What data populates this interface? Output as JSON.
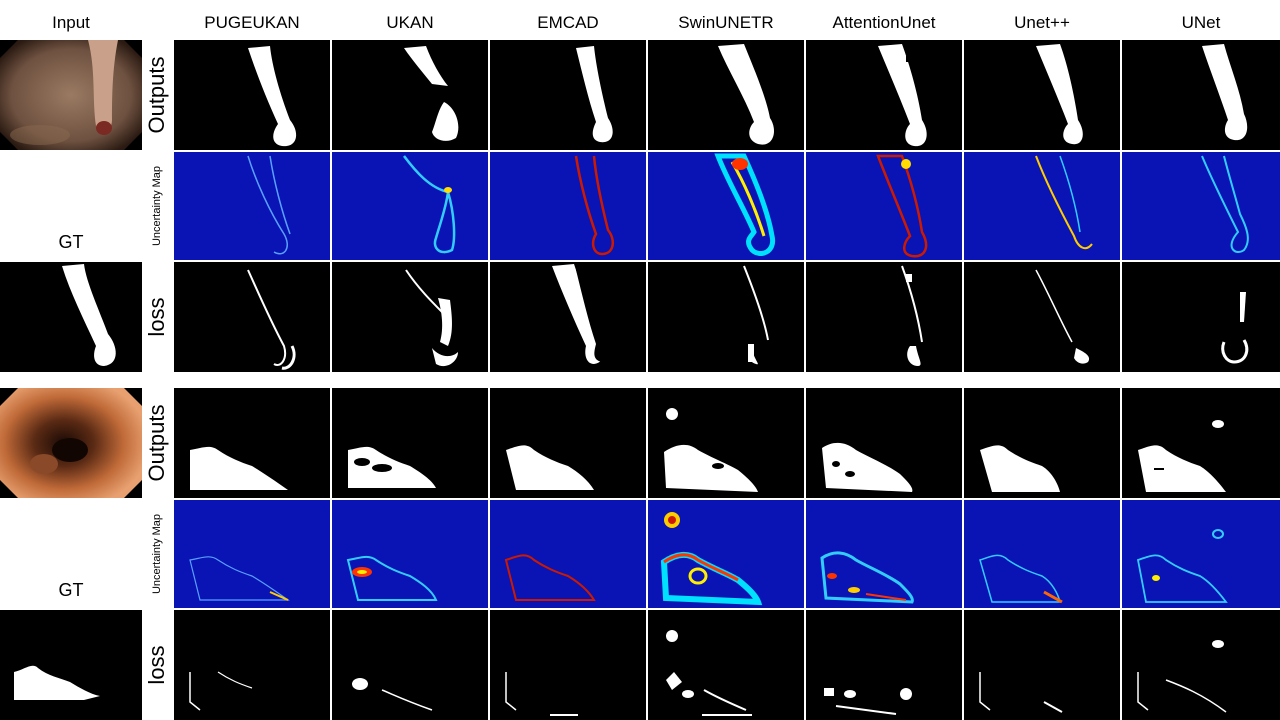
{
  "columns": {
    "input": "Input",
    "models": [
      "PUGEUKAN",
      "UKAN",
      "EMCAD",
      "SwinUNETR",
      "AttentionUnet",
      "Unet++",
      "UNet"
    ]
  },
  "row_labels": {
    "outputs": "Outputs",
    "uncertainty": "Uncertainty Map",
    "loss": "loss",
    "gt": "GT"
  },
  "colors": {
    "uncertainty_bg": "#0a14b4",
    "mask": "#ffffff",
    "background": "#000000"
  }
}
